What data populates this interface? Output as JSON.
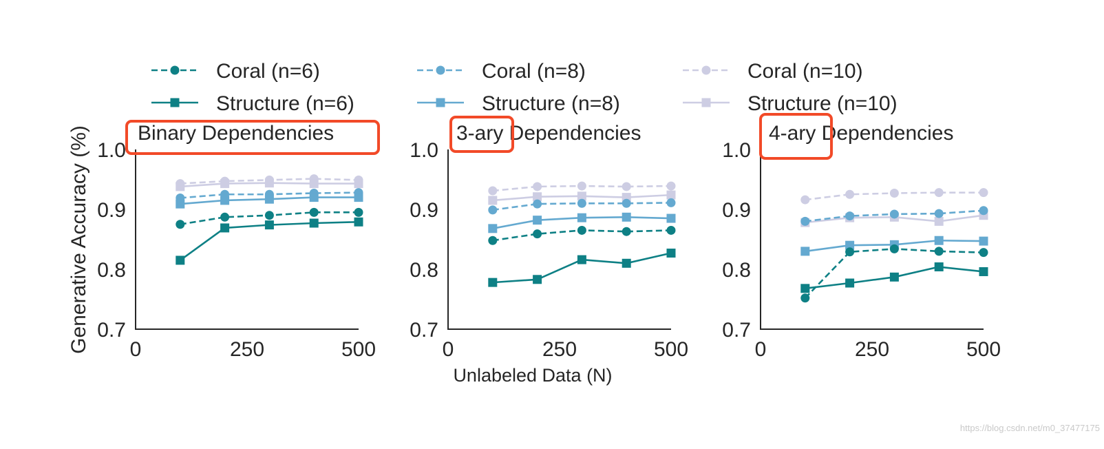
{
  "chart_data": {
    "type": "line",
    "ylabel": "Generative Accuracy (%)",
    "xlabel": "Unlabeled Data (N)",
    "xlim": [
      0,
      500
    ],
    "ylim": [
      0.7,
      1.0
    ],
    "xticks": [
      "0",
      "250",
      "500"
    ],
    "yticks": [
      "0.7",
      "0.8",
      "0.9",
      "1.0"
    ],
    "x": [
      100,
      200,
      300,
      400,
      500
    ],
    "legend": [
      {
        "label": "Coral (n=6)",
        "color": "#0e8085",
        "style": "dashed",
        "marker": "circle"
      },
      {
        "label": "Structure (n=6)",
        "color": "#0e8085",
        "style": "solid",
        "marker": "square"
      },
      {
        "label": "Coral (n=8)",
        "color": "#64a9d0",
        "style": "dashed",
        "marker": "circle"
      },
      {
        "label": "Structure (n=8)",
        "color": "#64a9d0",
        "style": "solid",
        "marker": "square"
      },
      {
        "label": "Coral (n=10)",
        "color": "#cdcde3",
        "style": "dashed",
        "marker": "circle"
      },
      {
        "label": "Structure (n=10)",
        "color": "#cdcde3",
        "style": "solid",
        "marker": "square"
      }
    ],
    "panels": [
      {
        "title": "Binary Dependencies",
        "highlight": "Binary Dependencies",
        "series": [
          {
            "name": "Coral (n=10)",
            "values": [
              0.943,
              0.947,
              0.949,
              0.951,
              0.949
            ]
          },
          {
            "name": "Structure (n=10)",
            "values": [
              0.938,
              0.943,
              0.944,
              0.943,
              0.943
            ]
          },
          {
            "name": "Coral (n=8)",
            "values": [
              0.919,
              0.925,
              0.925,
              0.927,
              0.928
            ]
          },
          {
            "name": "Structure (n=8)",
            "values": [
              0.909,
              0.915,
              0.917,
              0.92,
              0.92
            ]
          },
          {
            "name": "Coral (n=6)",
            "values": [
              0.875,
              0.887,
              0.89,
              0.895,
              0.895
            ]
          },
          {
            "name": "Structure (n=6)",
            "values": [
              0.815,
              0.869,
              0.874,
              0.877,
              0.879
            ]
          }
        ]
      },
      {
        "title": "3-ary Dependencies",
        "highlight": "3-ary",
        "series": [
          {
            "name": "Coral (n=10)",
            "values": [
              0.931,
              0.938,
              0.939,
              0.938,
              0.939
            ]
          },
          {
            "name": "Structure (n=10)",
            "values": [
              0.915,
              0.921,
              0.922,
              0.92,
              0.924
            ]
          },
          {
            "name": "Coral (n=8)",
            "values": [
              0.899,
              0.909,
              0.91,
              0.91,
              0.911
            ]
          },
          {
            "name": "Structure (n=8)",
            "values": [
              0.868,
              0.882,
              0.886,
              0.887,
              0.885
            ]
          },
          {
            "name": "Coral (n=6)",
            "values": [
              0.848,
              0.859,
              0.865,
              0.863,
              0.865
            ]
          },
          {
            "name": "Structure (n=6)",
            "values": [
              0.778,
              0.783,
              0.816,
              0.81,
              0.827
            ]
          }
        ]
      },
      {
        "title": "4-ary Dependencies",
        "highlight": "4-ary",
        "series": [
          {
            "name": "Coral (n=10)",
            "values": [
              0.916,
              0.925,
              0.927,
              0.928,
              0.928
            ]
          },
          {
            "name": "Structure (n=10)",
            "values": [
              0.878,
              0.886,
              0.887,
              0.88,
              0.89
            ]
          },
          {
            "name": "Coral (n=8)",
            "values": [
              0.88,
              0.889,
              0.892,
              0.893,
              0.898
            ]
          },
          {
            "name": "Structure (n=8)",
            "values": [
              0.83,
              0.84,
              0.841,
              0.848,
              0.847
            ]
          },
          {
            "name": "Coral (n=6)",
            "values": [
              0.752,
              0.829,
              0.834,
              0.83,
              0.828
            ]
          },
          {
            "name": "Structure (n=6)",
            "values": [
              0.768,
              0.777,
              0.787,
              0.804,
              0.796
            ]
          }
        ]
      }
    ]
  },
  "watermark": "https://blog.csdn.net/m0_37477175"
}
